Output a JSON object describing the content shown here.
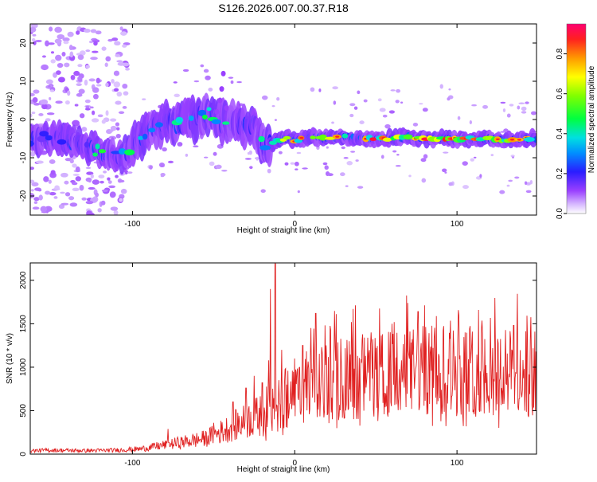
{
  "title": "S126.2026.007.00.37.R18",
  "chart_data": [
    {
      "type": "heatmap",
      "name": "spectrogram",
      "xlabel": "Height of straight line (km)",
      "ylabel": "Frequency (Hz)",
      "xlim": [
        -163,
        149
      ],
      "ylim": [
        -25,
        25
      ],
      "xticks": [
        -100,
        0,
        100
      ],
      "yticks": [
        -20,
        -10,
        0,
        10,
        20
      ],
      "colorbar": {
        "label": "Normalized spectral amplitude",
        "range": [
          0,
          0.95
        ],
        "ticks": [
          0.0,
          0.2,
          0.4,
          0.6,
          0.8
        ],
        "tick_labels": [
          "0.0",
          "0.2",
          "0.4",
          "0.6",
          "0.8"
        ]
      },
      "ridge": {
        "description": "dominant frequency vs height",
        "points": [
          [
            -163,
            -5
          ],
          [
            -150,
            -5
          ],
          [
            -135,
            -6
          ],
          [
            -120,
            -8.5
          ],
          [
            -110,
            -10
          ],
          [
            -100,
            -8
          ],
          [
            -92,
            -3
          ],
          [
            -85,
            -2
          ],
          [
            -78,
            -0.5
          ],
          [
            -70,
            -1
          ],
          [
            -62,
            0
          ],
          [
            -55,
            2
          ],
          [
            -50,
            1
          ],
          [
            -45,
            -1
          ],
          [
            -40,
            0
          ],
          [
            -35,
            -1
          ],
          [
            -30,
            -2
          ],
          [
            -25,
            -1
          ],
          [
            -22,
            -6
          ],
          [
            -18,
            -7
          ],
          [
            -14,
            -6
          ],
          [
            -10,
            -5.5
          ],
          [
            -5,
            -5
          ],
          [
            0,
            -5.5
          ],
          [
            10,
            -4.5
          ],
          [
            20,
            -5
          ],
          [
            30,
            -4.5
          ],
          [
            40,
            -5
          ],
          [
            50,
            -5
          ],
          [
            60,
            -5
          ],
          [
            70,
            -4.5
          ],
          [
            80,
            -5
          ],
          [
            90,
            -5
          ],
          [
            100,
            -5
          ],
          [
            110,
            -5
          ],
          [
            120,
            -5
          ],
          [
            130,
            -5.5
          ],
          [
            140,
            -5
          ],
          [
            149,
            -5
          ]
        ]
      }
    },
    {
      "type": "line",
      "name": "snr",
      "xlabel": "Height of straight line (km)",
      "ylabel": "SNR (10 * v/v)",
      "xlim": [
        -163,
        149
      ],
      "ylim": [
        0,
        2200
      ],
      "xticks": [
        -100,
        0,
        100
      ],
      "yticks": [
        0,
        500,
        1000,
        1500,
        2000
      ],
      "series": [
        {
          "name": "SNR",
          "color": "#e02020",
          "envelope_x": [
            -163,
            -150,
            -130,
            -110,
            -95,
            -85,
            -75,
            -65,
            -55,
            -45,
            -38,
            -30,
            -25,
            -20,
            -15,
            -10,
            -5,
            0,
            5,
            10,
            20,
            30,
            40,
            50,
            60,
            70,
            80,
            90,
            100,
            110,
            120,
            130,
            140,
            149
          ],
          "envelope_y": [
            40,
            45,
            40,
            45,
            60,
            90,
            120,
            150,
            180,
            260,
            320,
            380,
            420,
            450,
            480,
            520,
            580,
            650,
            700,
            760,
            820,
            860,
            880,
            900,
            920,
            940,
            960,
            960,
            950,
            950,
            950,
            940,
            930,
            900
          ],
          "spikes": [
            [
              -78,
              290
            ],
            [
              -50,
              360
            ],
            [
              -38,
              600
            ],
            [
              -30,
              760
            ],
            [
              -25,
              900
            ],
            [
              -20,
              820
            ],
            [
              -16,
              1080
            ],
            [
              -15,
              1900
            ],
            [
              -12,
              2190
            ],
            [
              -8,
              1200
            ],
            [
              -5,
              800
            ],
            [
              0,
              1100
            ],
            [
              5,
              1250
            ],
            [
              10,
              1450
            ],
            [
              13,
              1620
            ],
            [
              22,
              1430
            ],
            [
              35,
              1520
            ],
            [
              47,
              1400
            ],
            [
              60,
              1500
            ],
            [
              76,
              1640
            ],
            [
              90,
              1500
            ],
            [
              105,
              1400
            ],
            [
              115,
              1420
            ],
            [
              135,
              1480
            ],
            [
              148,
              1410
            ]
          ]
        }
      ]
    }
  ]
}
